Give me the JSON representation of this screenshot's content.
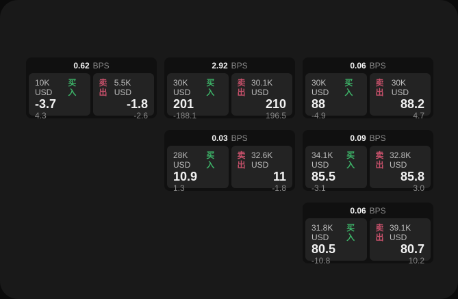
{
  "colors": {
    "panel_bg": "#191919",
    "card_bg": "#101010",
    "tile_bg": "#232323",
    "text_primary": "#f2f2f2",
    "text_label": "#bdbdbd",
    "text_muted": "#8a8a8a",
    "buy": "#3db368",
    "sell": "#c8516b"
  },
  "labels": {
    "bps": "BPS",
    "buy": "买入",
    "sell": "卖出"
  },
  "cards": [
    {
      "row": 1,
      "col": 1,
      "bps": "0.62",
      "buy": {
        "size": "10K USD",
        "value": "-3.7",
        "sub": "4.3"
      },
      "sell": {
        "size": "5.5K USD",
        "value": "-1.8",
        "sub": "-2.6"
      }
    },
    {
      "row": 1,
      "col": 2,
      "bps": "2.92",
      "buy": {
        "size": "30K USD",
        "value": "201",
        "sub": "-188.1"
      },
      "sell": {
        "size": "30.1K USD",
        "value": "210",
        "sub": "196.5"
      }
    },
    {
      "row": 1,
      "col": 3,
      "bps": "0.06",
      "buy": {
        "size": "30K USD",
        "value": "88",
        "sub": "-4.9"
      },
      "sell": {
        "size": "30K USD",
        "value": "88.2",
        "sub": "4.7"
      }
    },
    {
      "row": 2,
      "col": 2,
      "bps": "0.03",
      "buy": {
        "size": "28K USD",
        "value": "10.9",
        "sub": "1.3"
      },
      "sell": {
        "size": "32.6K USD",
        "value": "11",
        "sub": "-1.8"
      }
    },
    {
      "row": 2,
      "col": 3,
      "bps": "0.09",
      "buy": {
        "size": "34.1K USD",
        "value": "85.5",
        "sub": "-3.1"
      },
      "sell": {
        "size": "32.8K USD",
        "value": "85.8",
        "sub": "3.0"
      }
    },
    {
      "row": 3,
      "col": 3,
      "bps": "0.06",
      "buy": {
        "size": "31.8K USD",
        "value": "80.5",
        "sub": "-10.8"
      },
      "sell": {
        "size": "39.1K USD",
        "value": "80.7",
        "sub": "10.2"
      }
    }
  ]
}
